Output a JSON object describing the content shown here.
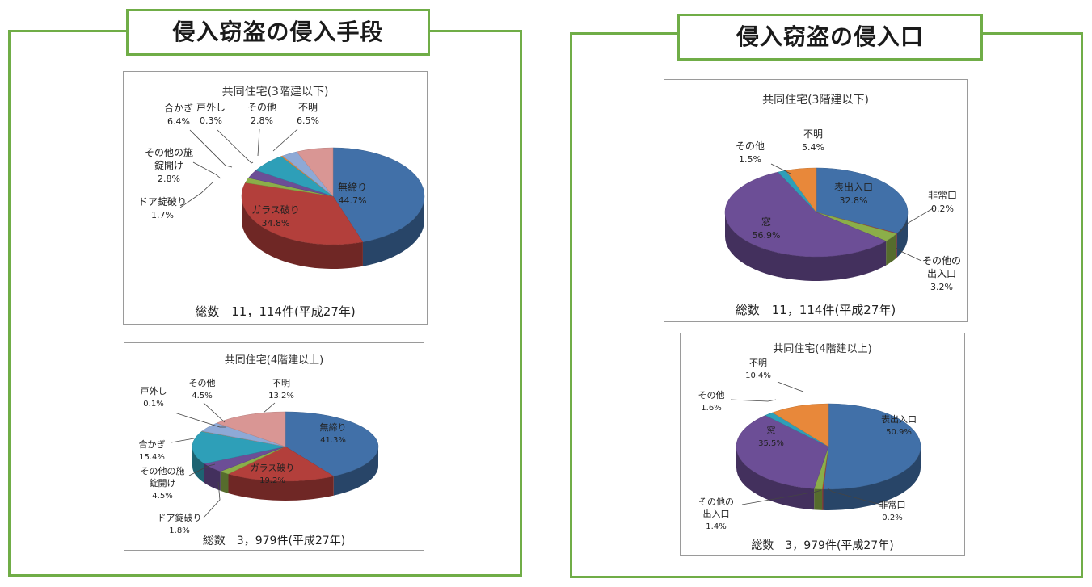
{
  "left_panel": {
    "title": "侵入窃盗の侵入手段",
    "charts": [
      {
        "title": "共同住宅(3階建以下)",
        "total": "総数　11，114件(平成27年)",
        "chart_data": {
          "type": "pie",
          "title": "共同住宅(3階建以下)",
          "slices": [
            {
              "label": "無締り",
              "value": 44.7,
              "value_label": "44.7%",
              "color": "#4170a8"
            },
            {
              "label": "ガラス破り",
              "value": 34.8,
              "value_label": "34.8%",
              "color": "#b33f3b"
            },
            {
              "label": "ドア錠破り",
              "value": 1.7,
              "value_label": "1.7%",
              "color": "#8bae49"
            },
            {
              "label": "その他の施錠開け",
              "value": 2.8,
              "value_label": "2.8%",
              "color": "#6c4e96"
            },
            {
              "label": "合かぎ",
              "value": 6.4,
              "value_label": "6.4%",
              "color": "#2e9fb8"
            },
            {
              "label": "戸外し",
              "value": 0.3,
              "value_label": "0.3%",
              "color": "#e8883a"
            },
            {
              "label": "その他",
              "value": 2.8,
              "value_label": "2.8%",
              "color": "#8ea9d6"
            },
            {
              "label": "不明",
              "value": 6.5,
              "value_label": "6.5%",
              "color": "#d99694"
            }
          ]
        }
      },
      {
        "title": "共同住宅(4階建以上)",
        "total": "総数　3，979件(平成27年)",
        "chart_data": {
          "type": "pie",
          "title": "共同住宅(4階建以上)",
          "slices": [
            {
              "label": "無締り",
              "value": 41.3,
              "value_label": "41.3%",
              "color": "#4170a8"
            },
            {
              "label": "ガラス破り",
              "value": 19.2,
              "value_label": "19.2%",
              "color": "#b33f3b"
            },
            {
              "label": "ドア錠破り",
              "value": 1.8,
              "value_label": "1.8%",
              "color": "#8bae49"
            },
            {
              "label": "その他の施錠開け",
              "value": 4.5,
              "value_label": "4.5%",
              "color": "#6c4e96"
            },
            {
              "label": "合かぎ",
              "value": 15.4,
              "value_label": "15.4%",
              "color": "#2e9fb8"
            },
            {
              "label": "戸外し",
              "value": 0.1,
              "value_label": "0.1%",
              "color": "#e8883a"
            },
            {
              "label": "その他",
              "value": 4.5,
              "value_label": "4.5%",
              "color": "#8ea9d6"
            },
            {
              "label": "不明",
              "value": 13.2,
              "value_label": "13.2%",
              "color": "#d99694"
            }
          ]
        }
      }
    ]
  },
  "right_panel": {
    "title": "侵入窃盗の侵入口",
    "charts": [
      {
        "title": "共同住宅(3階建以下)",
        "total": "総数　11，114件(平成27年)",
        "chart_data": {
          "type": "pie",
          "title": "共同住宅(3階建以下)",
          "slices": [
            {
              "label": "表出入口",
              "value": 32.8,
              "value_label": "32.8%",
              "color": "#4170a8"
            },
            {
              "label": "非常口",
              "value": 0.2,
              "value_label": "0.2%",
              "color": "#b33f3b"
            },
            {
              "label": "その他の出入口",
              "value": 3.2,
              "value_label": "3.2%",
              "color": "#8bae49"
            },
            {
              "label": "窓",
              "value": 56.9,
              "value_label": "56.9%",
              "color": "#6c4e96"
            },
            {
              "label": "その他",
              "value": 1.5,
              "value_label": "1.5%",
              "color": "#2e9fb8"
            },
            {
              "label": "不明",
              "value": 5.4,
              "value_label": "5.4%",
              "color": "#e8883a"
            }
          ]
        }
      },
      {
        "title": "共同住宅(4階建以上)",
        "total": "総数　3，979件(平成27年)",
        "chart_data": {
          "type": "pie",
          "title": "共同住宅(4階建以上)",
          "slices": [
            {
              "label": "表出入口",
              "value": 50.9,
              "value_label": "50.9%",
              "color": "#4170a8"
            },
            {
              "label": "非常口",
              "value": 0.2,
              "value_label": "0.2%",
              "color": "#b33f3b"
            },
            {
              "label": "その他の出入口",
              "value": 1.4,
              "value_label": "1.4%",
              "color": "#8bae49"
            },
            {
              "label": "窓",
              "value": 35.5,
              "value_label": "35.5%",
              "color": "#6c4e96"
            },
            {
              "label": "その他",
              "value": 1.6,
              "value_label": "1.6%",
              "color": "#2e9fb8"
            },
            {
              "label": "不明",
              "value": 10.4,
              "value_label": "10.4%",
              "color": "#e8883a"
            }
          ]
        }
      }
    ]
  }
}
